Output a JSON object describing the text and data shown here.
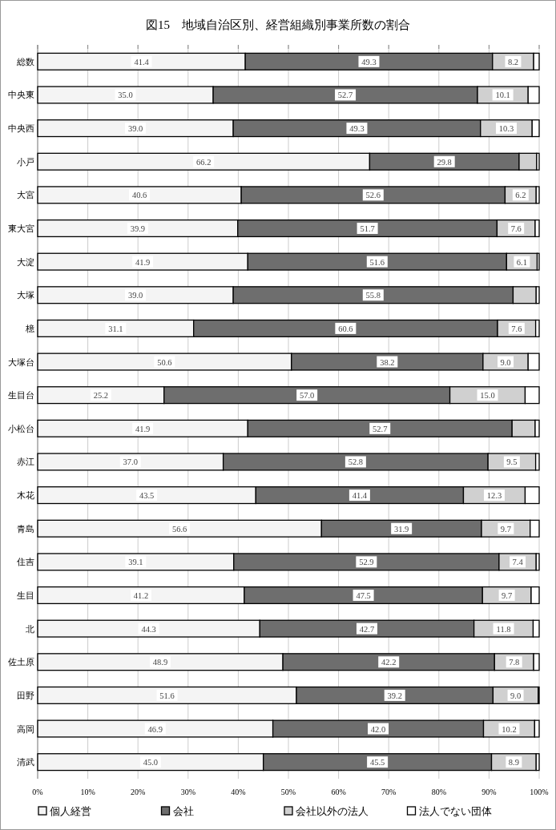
{
  "chart_data": {
    "type": "bar",
    "orientation": "horizontal",
    "stacked": true,
    "title": "図15　地域自治区別、経営組織別事業所数の割合",
    "categories": [
      "総数",
      "中央東",
      "中央西",
      "小戸",
      "大宮",
      "東大宮",
      "大淀",
      "大塚",
      "檍",
      "大塚台",
      "生目台",
      "小松台",
      "赤江",
      "木花",
      "青島",
      "住吉",
      "生目",
      "北",
      "佐土原",
      "田野",
      "高岡",
      "清武"
    ],
    "series": [
      {
        "name": "個人経営",
        "color": "#f4f4f4",
        "values": [
          41.4,
          35.0,
          39.0,
          66.2,
          40.6,
          39.9,
          41.9,
          39.0,
          31.1,
          50.6,
          25.2,
          41.9,
          37.0,
          43.5,
          56.6,
          39.1,
          41.2,
          44.3,
          48.9,
          51.6,
          46.9,
          45.0
        ],
        "value_labels": [
          "41.4",
          "35.0",
          "39.0",
          "66.2",
          "40.6",
          "39.9",
          "41.9",
          "39.0",
          "31.1",
          "50.6",
          "25.2",
          "41.9",
          "37.0",
          "43.5",
          "56.6",
          "39.1",
          "41.2",
          "44.3",
          "48.9",
          "51.6",
          "46.9",
          "45.0"
        ]
      },
      {
        "name": "会社",
        "color": "#6e6e6e",
        "values": [
          49.3,
          52.7,
          49.3,
          29.8,
          52.6,
          51.7,
          51.6,
          55.8,
          60.6,
          38.2,
          57.0,
          52.7,
          52.8,
          41.4,
          31.9,
          52.9,
          47.5,
          42.7,
          42.2,
          39.2,
          42.0,
          45.5
        ],
        "value_labels": [
          "49.3",
          "52.7",
          "49.3",
          "29.8",
          "52.6",
          "51.7",
          "51.6",
          "55.8",
          "60.6",
          "38.2",
          "57.0",
          "52.7",
          "52.8",
          "41.4",
          "31.9",
          "52.9",
          "47.5",
          "42.7",
          "42.2",
          "39.2",
          "42.0",
          "45.5"
        ]
      },
      {
        "name": "会社以外の法人",
        "color": "#d0d0d0",
        "values": [
          8.2,
          10.1,
          10.3,
          3.5,
          6.2,
          7.6,
          6.1,
          4.6,
          7.6,
          9.0,
          15.0,
          4.6,
          9.5,
          12.3,
          9.7,
          7.4,
          9.7,
          11.8,
          7.8,
          9.0,
          10.2,
          8.9
        ],
        "value_labels": [
          "8.2",
          "10.1",
          "10.3",
          null,
          "6.2",
          "7.6",
          "6.1",
          null,
          "7.6",
          "9.0",
          "15.0",
          null,
          "9.5",
          "12.3",
          "9.7",
          "7.4",
          "9.7",
          "11.8",
          "7.8",
          "9.0",
          "10.2",
          "8.9"
        ]
      },
      {
        "name": "法人でない団体",
        "color": "#ffffff",
        "values": [
          1.1,
          2.2,
          1.4,
          0.5,
          0.6,
          0.8,
          0.4,
          0.6,
          0.7,
          2.2,
          2.8,
          0.8,
          0.7,
          2.8,
          1.8,
          0.6,
          1.6,
          1.2,
          1.1,
          0.2,
          0.9,
          0.6
        ]
      }
    ],
    "xlim": [
      0,
      100
    ],
    "xticks": [
      {
        "value": 0,
        "label": "0%"
      },
      {
        "value": 10,
        "label": "10%"
      },
      {
        "value": 20,
        "label": "20%"
      },
      {
        "value": 30,
        "label": "30%"
      },
      {
        "value": 40,
        "label": "40%"
      },
      {
        "value": 50,
        "label": "50%"
      },
      {
        "value": 60,
        "label": "60%"
      },
      {
        "value": 70,
        "label": "70%"
      },
      {
        "value": 80,
        "label": "80%"
      },
      {
        "value": 90,
        "label": "90%"
      },
      {
        "value": 100,
        "label": "100%"
      }
    ],
    "grid": "x",
    "legend": "bottom"
  }
}
